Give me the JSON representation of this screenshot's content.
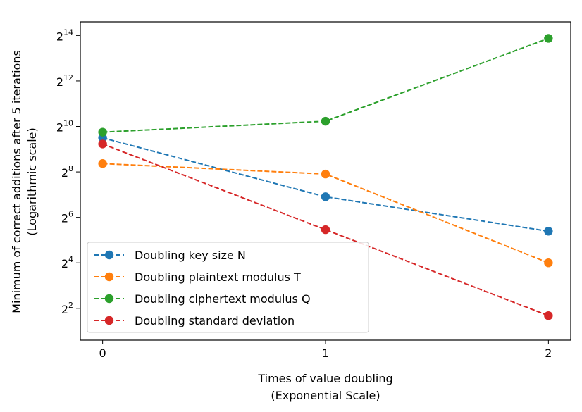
{
  "chart_data": {
    "type": "line",
    "x": [
      0,
      1,
      2
    ],
    "y_scale": "log2",
    "xlim": [
      -0.1,
      2.1
    ],
    "ylim_exponent": [
      0.6,
      14.6
    ],
    "xticks": [
      "0",
      "1",
      "2"
    ],
    "yticks": [
      {
        "base": "2",
        "exp": "2",
        "value": 2
      },
      {
        "base": "2",
        "exp": "4",
        "value": 4
      },
      {
        "base": "2",
        "exp": "6",
        "value": 6
      },
      {
        "base": "2",
        "exp": "8",
        "value": 8
      },
      {
        "base": "2",
        "exp": "10",
        "value": 10
      },
      {
        "base": "2",
        "exp": "12",
        "value": 12
      },
      {
        "base": "2",
        "exp": "14",
        "value": 14
      }
    ],
    "xlabel_line1": "Times of value doubling",
    "xlabel_line2": "(Exponential Scale)",
    "ylabel_line1": "Minimum of correct additions after 5 iterations",
    "ylabel_line2": "(Logarithmic scale)",
    "legend_position": "lower-left",
    "series": [
      {
        "name": "Doubling key size N",
        "color": "#1f77b4",
        "values": [
          724,
          120,
          42
        ]
      },
      {
        "name": "Doubling plaintext modulus T",
        "color": "#ff7f0e",
        "values": [
          330,
          240,
          16
        ]
      },
      {
        "name": "Doubling ciphertext modulus Q",
        "color": "#2ca02c",
        "values": [
          860,
          1200,
          15000
        ]
      },
      {
        "name": "Doubling standard deviation",
        "color": "#d62728",
        "values": [
          600,
          44,
          3.2
        ]
      }
    ]
  }
}
